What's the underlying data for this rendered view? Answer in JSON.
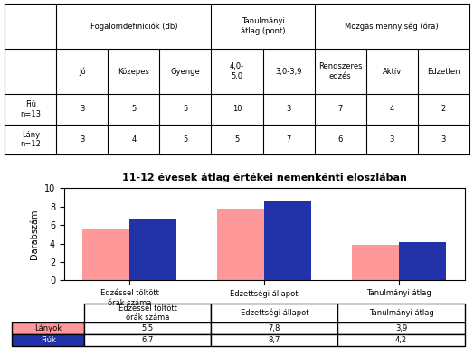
{
  "chart_data": [
    {
      "type": "table",
      "categories": [
        "Fiú\nn=13",
        "Lány\nn=12"
      ],
      "series": [
        {
          "name": "Jó",
          "group": "Fogalomdefiníciók (db)",
          "values": [
            3,
            3
          ]
        },
        {
          "name": "Közepes",
          "group": "Fogalomdefiníciók (db)",
          "values": [
            5,
            4
          ]
        },
        {
          "name": "Gyenge",
          "group": "Fogalomdefiníciók (db)",
          "values": [
            5,
            5
          ]
        },
        {
          "name": "4,0-\n5,0",
          "group": "Tanulmányi\nátlag (pont)",
          "values": [
            10,
            5
          ]
        },
        {
          "name": "3,0-3,9",
          "group": "Tanulmányi\nátlag (pont)",
          "values": [
            3,
            7
          ]
        },
        {
          "name": "Rendszeres\nedzés",
          "group": "Mozgás mennyiség (óra)",
          "values": [
            7,
            6
          ]
        },
        {
          "name": "Aktív",
          "group": "Mozgás mennyiség (óra)",
          "values": [
            4,
            3
          ]
        },
        {
          "name": "Edzetlen",
          "group": "Mozgás mennyiség (óra)",
          "values": [
            2,
            3
          ]
        }
      ]
    },
    {
      "type": "bar",
      "title": "11-12 évesek átlag értékei nemenkénti eloszlában",
      "categories": [
        "Edzéssel töltött\nórák száma",
        "Edzettségi állapot",
        "Tanulmányi átlag"
      ],
      "ylabel": "Darabszám",
      "ylim": [
        0,
        10
      ],
      "yticks": [
        0,
        2,
        4,
        6,
        8,
        10
      ],
      "series": [
        {
          "name": "Lányok",
          "color": "#FF9999",
          "values": [
            5.5,
            7.8,
            3.9
          ],
          "value_labels": [
            "5,5",
            "7,8",
            "3,9"
          ]
        },
        {
          "name": "Fiúk",
          "color": "#2233AA",
          "values": [
            6.7,
            8.7,
            4.2
          ],
          "value_labels": [
            "6,7",
            "8,7",
            "4,2"
          ]
        }
      ]
    }
  ]
}
